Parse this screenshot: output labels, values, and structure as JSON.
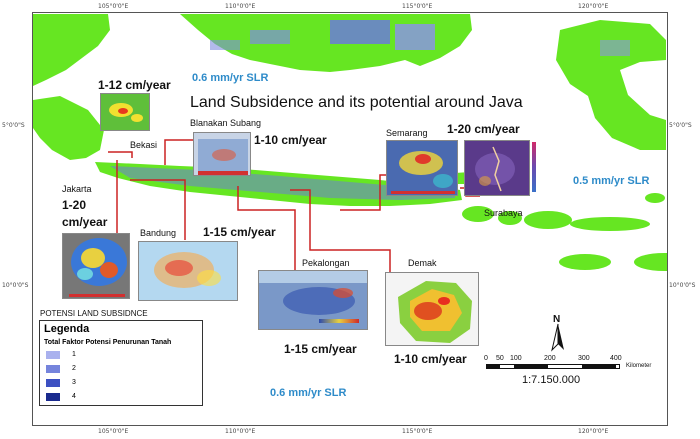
{
  "map": {
    "title": "Land Subsidence and its potential around Java",
    "colors": {
      "land": "#66e622",
      "ocean": "#ffffff",
      "risk_blue": "#6b7bd8",
      "connector": "#cc2222",
      "slr_text": "#2e8bc9"
    },
    "ticks": {
      "top": [
        "105°0'0\"E",
        "110°0'0\"E",
        "115°0'0\"E",
        "120°0'0\"E"
      ],
      "bottom": [
        "105°0'0\"E",
        "110°0'0\"E",
        "115°0'0\"E",
        "120°0'0\"E"
      ],
      "left": [
        "5°0'0\"S",
        "10°0'0\"S"
      ],
      "right": [
        "5°0'0\"S",
        "10°0'0\"S"
      ]
    },
    "sea_level_rise": {
      "north": "0.6 mm/yr SLR",
      "east": "0.5 mm/yr SLR",
      "south": "0.6 mm/yr SLR"
    },
    "sites": {
      "bekasi": {
        "name": "Bekasi",
        "rate": "1-12 cm/year"
      },
      "blanakan": {
        "name": "Blanakan Subang",
        "rate": "1-10 cm/year"
      },
      "jakarta": {
        "name": "Jakarta",
        "rate_line1": "1-20",
        "rate_line2": "cm/year"
      },
      "bandung": {
        "name": "Bandung",
        "rate": "1-15 cm/year"
      },
      "semarang": {
        "name": "Semarang",
        "rate": "1-20 cm/year"
      },
      "surabaya": {
        "name": "Surabaya"
      },
      "pekalongan": {
        "name": "Pekalongan",
        "rate": "1-15 cm/year"
      },
      "demak": {
        "name": "Demak",
        "rate": "1-10 cm/year"
      }
    },
    "legend": {
      "heading": "POTENSI LAND SUBSIDNCE",
      "title": "Legenda",
      "subtitle": "Total Faktor Potensi Penurunan Tanah",
      "items": [
        {
          "label": "1",
          "color": "#a9b1ee"
        },
        {
          "label": "2",
          "color": "#7584dc"
        },
        {
          "label": "3",
          "color": "#3c50c2"
        },
        {
          "label": "4",
          "color": "#1a2a8e"
        }
      ]
    },
    "north_arrow": "N",
    "scale_bar": {
      "ticks": [
        "0",
        "50",
        "100",
        "200",
        "300",
        "400"
      ],
      "unit": "Kilometer",
      "ratio": "1:7.150.000"
    }
  }
}
